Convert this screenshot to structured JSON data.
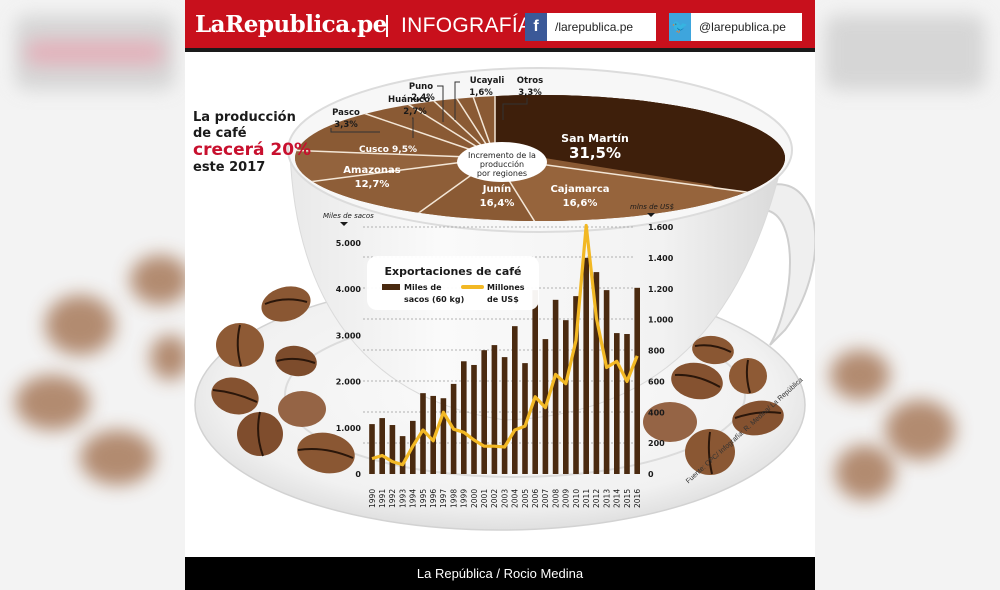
{
  "header": {
    "logo": "LaRepublica.pe",
    "section": "INFOGRAFÍA",
    "facebook": {
      "icon": "facebook-icon",
      "handle": "/larepublica.pe"
    },
    "twitter": {
      "icon": "twitter-icon",
      "handle": "@larepublica.pe"
    }
  },
  "headline": {
    "line1": "La producción",
    "line2": "de café",
    "line3_a": "crecerá ",
    "line3_b": "20%",
    "line4": "este 2017"
  },
  "footer": {
    "credit": "La República / Rocio Medina"
  },
  "source": "Fuente: CPC/ Infografía: R. Medina/ La República",
  "colors": {
    "brand_red": "#c8101c",
    "bar": "#4a2a10",
    "line": "#f2b824",
    "coffee_dark": "#3e1f0b",
    "coffee_mid": "#8a5a34",
    "coffee_light": "#a77a52"
  },
  "chart_data": [
    {
      "type": "pie",
      "title": "Incremento de la producción por regiones",
      "categories": [
        "San Martín",
        "Cajamarca",
        "Junín",
        "Amazonas",
        "Cusco",
        "Pasco",
        "Huánuco",
        "Puno",
        "Ucayali",
        "Otros"
      ],
      "values": [
        31.5,
        16.6,
        16.4,
        12.7,
        9.5,
        3.3,
        2.7,
        2.4,
        1.6,
        3.3
      ],
      "labels": [
        "31,5%",
        "16,6%",
        "16,4%",
        "12,7%",
        "9,5%",
        "3,3%",
        "2,7%",
        "2,4%",
        "1,6%",
        "3,3%"
      ],
      "unit": "%"
    },
    {
      "type": "bar",
      "title": "Exportaciones de café",
      "x": [
        "1990",
        "1991",
        "1992",
        "1993",
        "1994",
        "1995",
        "1996",
        "1997",
        "1998",
        "1999",
        "2000",
        "2001",
        "2002",
        "2003",
        "2004",
        "2005",
        "2006",
        "2007",
        "2008",
        "2009",
        "2010",
        "2011",
        "2012",
        "2013",
        "2014",
        "2015",
        "2016"
      ],
      "series": [
        {
          "name": "Miles de sacos (60 kg)",
          "type": "bar",
          "axis": "left",
          "values": [
            1080,
            1210,
            1060,
            820,
            1150,
            1750,
            1690,
            1640,
            1950,
            2440,
            2360,
            2680,
            2790,
            2530,
            3200,
            2400,
            3980,
            2920,
            3770,
            3330,
            3850,
            4680,
            4370,
            3980,
            3050,
            3030,
            4030
          ]
        },
        {
          "name": "Millones de US$",
          "type": "line",
          "axis": "right",
          "values": [
            100,
            120,
            80,
            60,
            180,
            285,
            215,
            400,
            290,
            270,
            220,
            180,
            180,
            175,
            285,
            310,
            500,
            430,
            645,
            585,
            865,
            1610,
            1010,
            690,
            730,
            600,
            765
          ]
        }
      ],
      "ylabel": "Miles de sacos",
      "ylabel_right": "mlns de US$",
      "ylim": [
        0,
        5000
      ],
      "ylim_right": [
        0,
        1600
      ],
      "yticks": [
        "0",
        "1.000",
        "2.000",
        "3.000",
        "4.000",
        "5.000"
      ],
      "yticks_right": [
        "0",
        "200",
        "400",
        "600",
        "800",
        "1.000",
        "1.200",
        "1.400",
        "1.600"
      ],
      "grid": true,
      "legend_position": "top-left inside"
    }
  ]
}
